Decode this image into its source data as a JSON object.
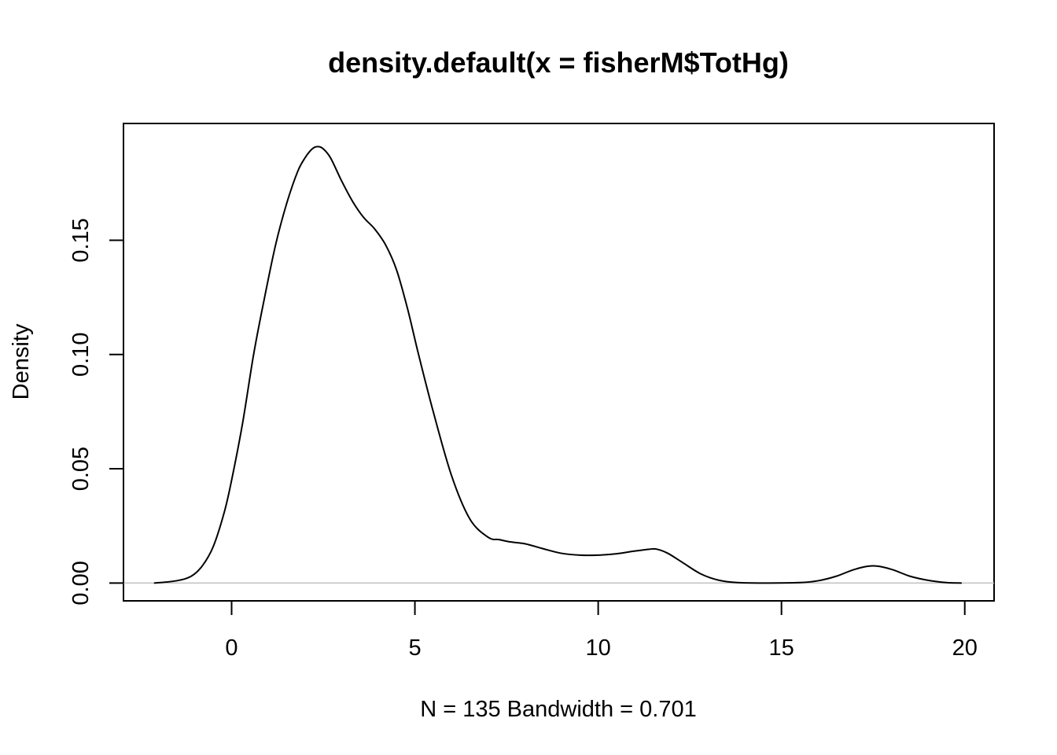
{
  "chart_data": {
    "type": "line",
    "title": "density.default(x = fisherM$TotHg)",
    "xlabel": "N = 135   Bandwidth = 0.701",
    "ylabel": "Density",
    "xlim": [
      -2.95,
      20.8
    ],
    "ylim": [
      -0.0078,
      0.2011
    ],
    "x_ticks": [
      0,
      5,
      10,
      15,
      20
    ],
    "x_tick_labels": [
      "0",
      "5",
      "10",
      "15",
      "20"
    ],
    "y_ticks": [
      0.0,
      0.05,
      0.1,
      0.15
    ],
    "y_tick_labels": [
      "0.00",
      "0.05",
      "0.10",
      "0.15"
    ],
    "grid": false,
    "legend": "none",
    "baseline": 0,
    "colors": {
      "line": "#000000",
      "baseline": "#bebebe",
      "frame": "#000000"
    },
    "series": [
      {
        "x": [
          -2.1,
          -1.5,
          -1.1,
          -0.8,
          -0.5,
          -0.2,
          0.0,
          0.3,
          0.6,
          0.9,
          1.2,
          1.5,
          1.8,
          2.0,
          2.2,
          2.35,
          2.5,
          2.7,
          3.0,
          3.3,
          3.6,
          3.9,
          4.2,
          4.5,
          4.8,
          5.1,
          5.5,
          6.0,
          6.5,
          7.0,
          7.3,
          7.6,
          8.0,
          8.5,
          9.0,
          9.5,
          10.0,
          10.5,
          11.0,
          11.4,
          11.6,
          11.9,
          12.3,
          12.8,
          13.3,
          13.8,
          14.5,
          15.5,
          16.0,
          16.5,
          17.0,
          17.5,
          18.0,
          18.5,
          19.0,
          19.5,
          19.9
        ],
        "y": [
          0.0,
          0.001,
          0.003,
          0.0075,
          0.016,
          0.031,
          0.045,
          0.07,
          0.1,
          0.125,
          0.148,
          0.166,
          0.18,
          0.186,
          0.19,
          0.191,
          0.19,
          0.186,
          0.176,
          0.167,
          0.16,
          0.155,
          0.148,
          0.137,
          0.12,
          0.1,
          0.075,
          0.047,
          0.028,
          0.02,
          0.019,
          0.018,
          0.0172,
          0.015,
          0.013,
          0.0122,
          0.0122,
          0.0128,
          0.014,
          0.0148,
          0.0148,
          0.013,
          0.009,
          0.004,
          0.0012,
          0.0002,
          0.0,
          0.0002,
          0.001,
          0.003,
          0.006,
          0.0075,
          0.006,
          0.003,
          0.0012,
          0.0002,
          0.0
        ]
      }
    ]
  }
}
